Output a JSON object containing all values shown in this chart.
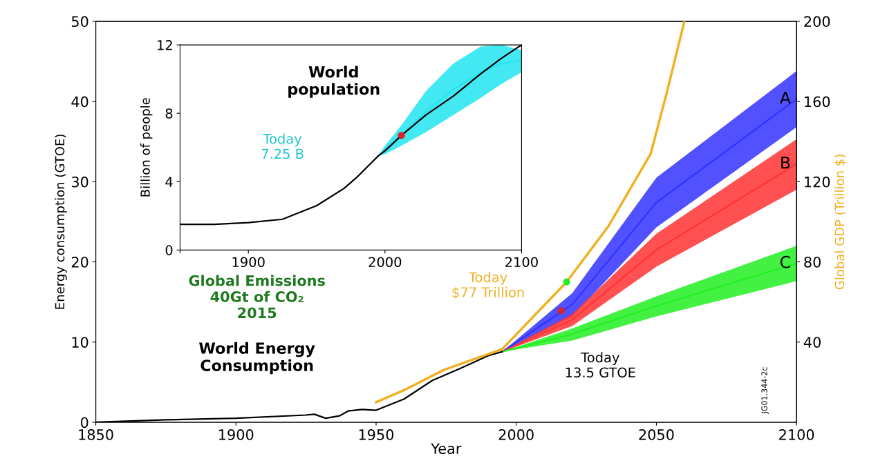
{
  "chart_data": [
    {
      "type": "line",
      "xlabel": "Year",
      "ylabel": "Energy consumption (GTOE)",
      "y2label": "Global GDP (Trillion $)",
      "xlim": [
        1850,
        2100
      ],
      "xticks": [
        1850,
        1900,
        1950,
        2000,
        2050,
        2100
      ],
      "ylim": [
        0,
        50
      ],
      "yticks": [
        0,
        10,
        20,
        30,
        40,
        50
      ],
      "y2lim": [
        0,
        200
      ],
      "y2ticks": [
        40,
        80,
        120,
        160,
        200
      ],
      "grid": false,
      "legend": false,
      "series": [
        {
          "color": "#000000",
          "x": [
            1850,
            1875,
            1900,
            1925,
            1928,
            1932,
            1937,
            1940,
            1945,
            1950,
            1960,
            1970,
            1980,
            1990,
            1995
          ],
          "values": [
            0,
            0.3,
            0.5,
            0.9,
            1.0,
            0.5,
            0.8,
            1.4,
            1.6,
            1.5,
            2.9,
            5.2,
            6.7,
            8.3,
            8.8
          ]
        },
        {
          "color": "#f0b020",
          "axis": "y2",
          "x": [
            1950,
            1960,
            1974,
            1995,
            2018,
            2033,
            2048,
            2054,
            2060
          ],
          "values": [
            10,
            16,
            26,
            36.5,
            70,
            98,
            134,
            166,
            200
          ]
        },
        {
          "type": "line",
          "name": "A",
          "color": "#3333ff",
          "x": [
            1995,
            2020,
            2050,
            2100
          ],
          "values": [
            8.8,
            14.7,
            27.4,
            40.3
          ],
          "lower": [
            8.8,
            13.2,
            24.3,
            36.8
          ],
          "upper": [
            8.8,
            16.1,
            30.5,
            43.8
          ]
        },
        {
          "type": "line",
          "name": "B",
          "color": "#ff3333",
          "x": [
            1995,
            2020,
            2050,
            2100
          ],
          "values": [
            8.8,
            12.8,
            21.5,
            32.2
          ],
          "lower": [
            8.8,
            12.0,
            19.4,
            29.0
          ],
          "upper": [
            8.8,
            13.5,
            23.5,
            35.3
          ]
        },
        {
          "type": "line",
          "name": "C",
          "color": "#22ee22",
          "x": [
            1995,
            2020,
            2050,
            2100
          ],
          "values": [
            8.8,
            11.0,
            14.5,
            19.8
          ],
          "lower": [
            8.8,
            10.2,
            13.2,
            17.6
          ],
          "upper": [
            8.8,
            11.7,
            15.7,
            22.0
          ]
        },
        {
          "type": "scatter",
          "color": "#dd2222",
          "x": [
            2016
          ],
          "values": [
            13.9
          ]
        },
        {
          "type": "scatter",
          "color": "#22ee22",
          "axis": "y2",
          "x": [
            2018
          ],
          "values": [
            70
          ]
        }
      ],
      "annotations": [
        "Global Emissions\n40Gt of CO₂\n2015",
        "World Energy\nConsumption",
        "Today\n$77 Trillion",
        "Today\n13.5 GTOE",
        "JG01.344-2c"
      ]
    },
    {
      "type": "line",
      "title": "World\npopulation",
      "ylabel": "Billion of people",
      "xlim": [
        1850,
        2100
      ],
      "xticks": [
        {
          "value": 1850,
          "label": null
        },
        1900,
        2000,
        2100
      ],
      "ylim": [
        0,
        12
      ],
      "yticks": [
        0,
        4,
        8,
        12
      ],
      "grid": false,
      "legend": false,
      "series": [
        {
          "type": "line",
          "color": "#22e5f0",
          "x": [
            1995,
            2000,
            2012,
            2030,
            2050,
            2070,
            2085,
            2100
          ],
          "values": [
            5.5,
            5.9,
            6.7,
            8.1,
            9.4,
            10.4,
            10.9,
            11.1
          ],
          "lower": [
            5.5,
            5.6,
            6.1,
            6.9,
            7.9,
            8.9,
            9.7,
            10.4
          ],
          "upper": [
            5.5,
            6.1,
            7.3,
            9.3,
            10.9,
            11.9,
            12.0,
            11.7
          ]
        },
        {
          "color": "#000000",
          "x": [
            1850,
            1875,
            1900,
            1925,
            1950,
            1970,
            1980,
            1990,
            1995,
            2000,
            2012,
            2030,
            2050,
            2070,
            2085,
            2100
          ],
          "values": [
            1.5,
            1.5,
            1.6,
            1.8,
            2.6,
            3.6,
            4.3,
            5.1,
            5.5,
            5.8,
            6.7,
            7.9,
            9.0,
            10.3,
            11.2,
            12.0
          ]
        },
        {
          "type": "scatter",
          "color": "#dd2222",
          "x": [
            2012
          ],
          "values": [
            6.7
          ]
        }
      ],
      "annotations": [
        "Today\n7.25 B"
      ]
    }
  ]
}
